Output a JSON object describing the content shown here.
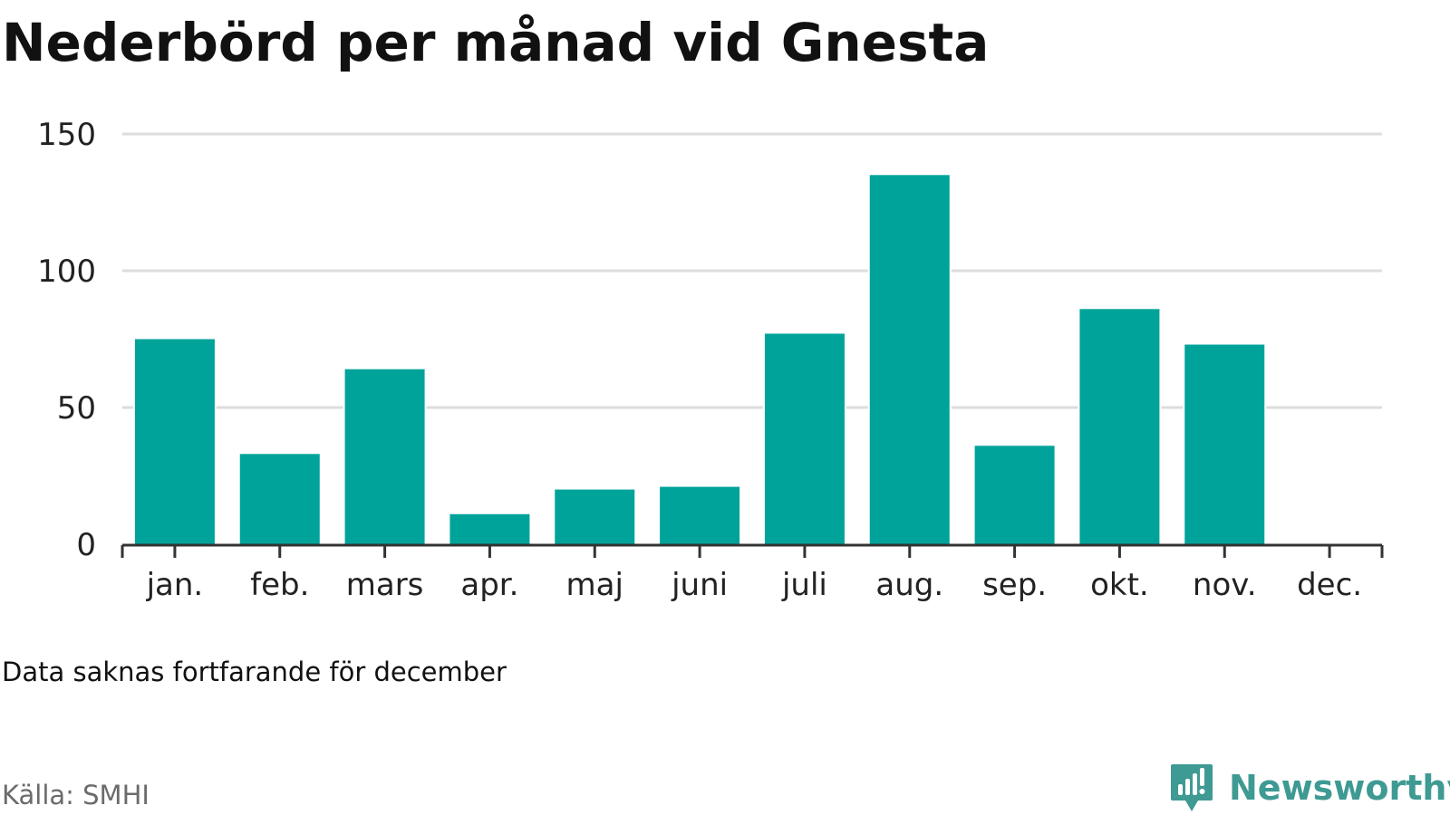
{
  "header": {
    "title": "Nederbörd per månad vid Gnesta"
  },
  "footer": {
    "note": "Data saknas fortfarande för december",
    "source": "Källa: SMHI",
    "brand": "Newsworthy",
    "brand_icon": "newsworthy-logo-icon"
  },
  "colors": {
    "bar": "#00a39a",
    "grid": "#dddddd",
    "axis": "#333333",
    "brand": "#3e9a93"
  },
  "chart_data": {
    "type": "bar",
    "title": "Nederbörd per månad vid Gnesta",
    "xlabel": "",
    "ylabel": "",
    "categories": [
      "jan.",
      "feb.",
      "mars",
      "apr.",
      "maj",
      "juni",
      "juli",
      "aug.",
      "sep.",
      "okt.",
      "nov.",
      "dec."
    ],
    "values": [
      75,
      33,
      64,
      11,
      20,
      21,
      77,
      135,
      36,
      86,
      73,
      null
    ],
    "ylim": [
      0,
      150
    ],
    "yticks": [
      0,
      50,
      100,
      150
    ],
    "grid": true,
    "legend": "none"
  }
}
